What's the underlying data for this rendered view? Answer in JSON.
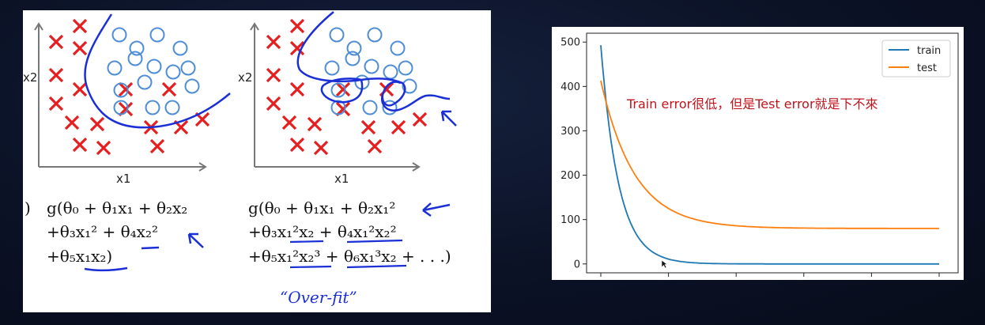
{
  "left_slide": {
    "plot1": {
      "y_label": "x2",
      "x_label": "x1"
    },
    "plot2": {
      "y_label": "x2",
      "x_label": "x1"
    },
    "formula1": {
      "line1": "g(θ₀ + θ₁x₁ + θ₂x₂",
      "line2": "+θ₃x₁² + θ₄x₂²",
      "line3": "+θ₅x₁x₂)",
      "open_paren": ")"
    },
    "formula2": {
      "line1": "g(θ₀ + θ₁x₁ + θ₂x₁²",
      "line2": "+θ₃x₁²x₂ + θ₄x₁²x₂²",
      "line3": "+θ₅x₁²x₂³ + θ₆x₁³x₂ + . . .)"
    },
    "handwriting": "“Over-fit”",
    "colors": {
      "cross": "#e51f1f",
      "circle": "#4f8ed6",
      "ink": "#1a2fd6"
    }
  },
  "chart_data": {
    "type": "line",
    "xlim": [
      0,
      50
    ],
    "ylim": [
      -20,
      520
    ],
    "y_ticks": [
      0,
      100,
      200,
      300,
      400,
      500
    ],
    "x_tick_count": 6,
    "series": [
      {
        "name": "train",
        "color": "#1f77b4",
        "start": 493,
        "end": 0,
        "decay": 0.38
      },
      {
        "name": "test",
        "color": "#ff7f0e",
        "start": 413,
        "end": 80,
        "decay": 0.2
      }
    ],
    "annotation": "Train error很低，但是Test error就是下不來",
    "legend_position": "upper-right"
  }
}
